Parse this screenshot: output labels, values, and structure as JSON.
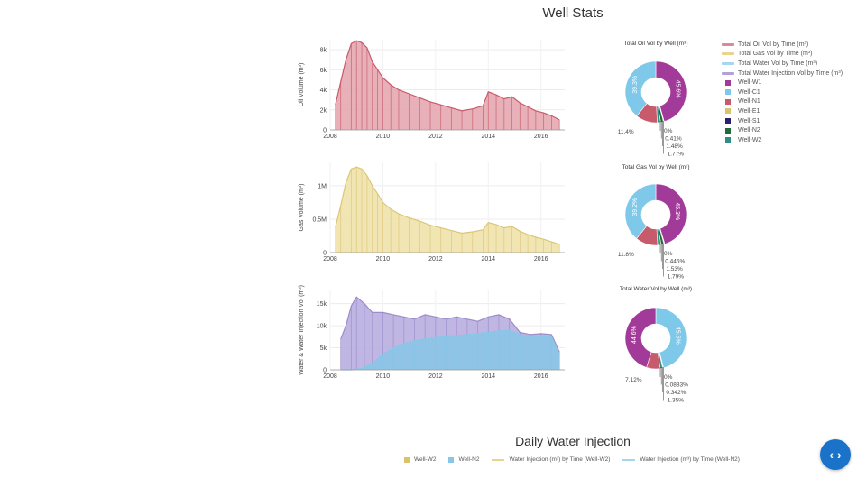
{
  "page": {
    "title": "Well Stats",
    "section_title": "Daily Water Injection"
  },
  "colors": {
    "oil": "#c75a6b",
    "oil_fill": "#e6a7b0",
    "gas": "#dcc676",
    "gas_fill": "#efe3ab",
    "water": "#87c7e8",
    "injection": "#9c8cc9",
    "injection_fill": "#b9aee0",
    "W1": "#a23a9a",
    "C1": "#7ec8ea",
    "N1": "#c75a6b",
    "E1": "#d9c46b",
    "S1": "#2a2266",
    "N2": "#1f6b3a",
    "W2": "#2e8f82"
  },
  "legend": {
    "lines": [
      {
        "label": "Total Oil Vol by Time (m³)",
        "color": "#d88a96"
      },
      {
        "label": "Total Gas Vol by Time (m³)",
        "color": "#e8d48e"
      },
      {
        "label": "Total Water Vol by Time (m³)",
        "color": "#a6d6ef"
      },
      {
        "label": "Total Water Injection Vol by Time (m³)",
        "color": "#b0a2da"
      }
    ],
    "wells": [
      {
        "label": "Well-W1",
        "color": "#a23a9a"
      },
      {
        "label": "Well-C1",
        "color": "#7ec8ea"
      },
      {
        "label": "Well-N1",
        "color": "#c75a6b"
      },
      {
        "label": "Well-E1",
        "color": "#d9c46b"
      },
      {
        "label": "Well-S1",
        "color": "#2a2266"
      },
      {
        "label": "Well-N2",
        "color": "#1f6b3a"
      },
      {
        "label": "Well-W2",
        "color": "#2e8f82"
      }
    ]
  },
  "bottom_legend": {
    "items": [
      {
        "label": "Well-W2",
        "color": "#d9c46b",
        "kind": "box"
      },
      {
        "label": "Well-N2",
        "color": "#87c7e8",
        "kind": "box"
      },
      {
        "label": "Water Injection (m³) by Time (Well-W2)",
        "color": "#e8d48e",
        "kind": "line"
      },
      {
        "label": "Water Injection (m³) by Time (Well-N2)",
        "color": "#a6d6ef",
        "kind": "line"
      }
    ]
  },
  "nav_button": {
    "label": "‹ ›"
  },
  "chart_data": [
    {
      "type": "area",
      "ylabel": "Oil Volume (m³)",
      "xlim": [
        2008,
        2016.9
      ],
      "ylim": [
        0,
        9000
      ],
      "xticks": [
        2008,
        2010,
        2012,
        2014,
        2016
      ],
      "xtick_labels": [
        "2008",
        "2010",
        "2012",
        "2014",
        "2016"
      ],
      "yticks": [
        0,
        2000,
        4000,
        6000,
        8000
      ],
      "ytick_labels": [
        "0",
        "2k",
        "4k",
        "6k",
        "8k"
      ],
      "grid": true,
      "series": [
        {
          "color_key": "oil",
          "x": [
            2008.2,
            2008.4,
            2008.6,
            2008.8,
            2009.0,
            2009.2,
            2009.4,
            2009.6,
            2009.8,
            2010.0,
            2010.3,
            2010.6,
            2011.0,
            2011.4,
            2011.8,
            2012.2,
            2012.6,
            2013.0,
            2013.4,
            2013.8,
            2014.0,
            2014.3,
            2014.6,
            2014.9,
            2015.2,
            2015.5,
            2015.8,
            2016.1,
            2016.4,
            2016.7
          ],
          "values": [
            2500,
            4800,
            7000,
            8600,
            8900,
            8700,
            8200,
            6800,
            6000,
            5200,
            4500,
            4000,
            3600,
            3200,
            2800,
            2500,
            2200,
            1900,
            2100,
            2400,
            3800,
            3500,
            3100,
            3300,
            2700,
            2300,
            1900,
            1700,
            1400,
            1000
          ]
        }
      ]
    },
    {
      "type": "area",
      "ylabel": "Gas Volume (m³)",
      "xlim": [
        2008,
        2016.9
      ],
      "ylim": [
        0,
        1350000
      ],
      "xticks": [
        2008,
        2010,
        2012,
        2014,
        2016
      ],
      "xtick_labels": [
        "2008",
        "2010",
        "2012",
        "2014",
        "2016"
      ],
      "yticks": [
        0,
        500000,
        1000000
      ],
      "ytick_labels": [
        "0",
        "0.5M",
        "1M"
      ],
      "grid": true,
      "series": [
        {
          "color_key": "gas",
          "x": [
            2008.2,
            2008.4,
            2008.6,
            2008.8,
            2009.0,
            2009.2,
            2009.4,
            2009.6,
            2009.8,
            2010.0,
            2010.3,
            2010.6,
            2011.0,
            2011.4,
            2011.8,
            2012.2,
            2012.6,
            2013.0,
            2013.4,
            2013.8,
            2014.0,
            2014.3,
            2014.6,
            2014.9,
            2015.2,
            2015.5,
            2015.8,
            2016.1,
            2016.4,
            2016.7
          ],
          "values": [
            380000,
            700000,
            1050000,
            1250000,
            1280000,
            1250000,
            1150000,
            1000000,
            880000,
            750000,
            650000,
            580000,
            520000,
            470000,
            410000,
            370000,
            330000,
            290000,
            310000,
            340000,
            450000,
            420000,
            370000,
            390000,
            320000,
            270000,
            230000,
            200000,
            160000,
            120000
          ]
        }
      ]
    },
    {
      "type": "area",
      "ylabel": "Water & Water Injection Vol (m³)",
      "xlim": [
        2008,
        2016.9
      ],
      "ylim": [
        0,
        18000
      ],
      "xticks": [
        2008,
        2010,
        2012,
        2014,
        2016
      ],
      "xtick_labels": [
        "2008",
        "2010",
        "2012",
        "2014",
        "2016"
      ],
      "yticks": [
        0,
        5000,
        10000,
        15000
      ],
      "ytick_labels": [
        "0",
        "5k",
        "10k",
        "15k"
      ],
      "grid": true,
      "series": [
        {
          "color_key": "injection",
          "x": [
            2008.4,
            2008.6,
            2008.8,
            2009.0,
            2009.3,
            2009.6,
            2010.0,
            2010.4,
            2010.8,
            2011.2,
            2011.6,
            2012.0,
            2012.4,
            2012.8,
            2013.2,
            2013.6,
            2014.0,
            2014.4,
            2014.8,
            2015.2,
            2015.6,
            2016.0,
            2016.4,
            2016.7
          ],
          "values": [
            7000,
            10000,
            14500,
            16500,
            15000,
            13000,
            13000,
            12500,
            12000,
            11500,
            12500,
            12000,
            11500,
            12000,
            11500,
            11000,
            12000,
            12500,
            11500,
            8500,
            8000,
            8200,
            8000,
            4000
          ]
        },
        {
          "color_key": "water",
          "x": [
            2008.4,
            2008.8,
            2009.2,
            2009.6,
            2010.0,
            2010.4,
            2010.8,
            2011.2,
            2011.6,
            2012.0,
            2012.4,
            2012.8,
            2013.2,
            2013.6,
            2014.0,
            2014.4,
            2014.8,
            2015.2,
            2015.6,
            2016.0,
            2016.4,
            2016.7
          ],
          "values": [
            0,
            0,
            300,
            1500,
            3500,
            5000,
            6000,
            6600,
            7000,
            7300,
            7600,
            7800,
            8000,
            8200,
            8500,
            8800,
            9000,
            8000,
            7600,
            7800,
            7500,
            3500
          ]
        }
      ]
    },
    {
      "type": "pie",
      "title": "Total Oil Vol by Well (m³)",
      "slices": [
        {
          "well": "W1",
          "value": 45.6
        },
        {
          "well": "S1",
          "value": 0.0
        },
        {
          "well": "E1",
          "value": 0.41
        },
        {
          "well": "N2",
          "value": 1.48
        },
        {
          "well": "W2",
          "value": 1.77
        },
        {
          "well": "N1",
          "value": 11.4
        },
        {
          "well": "C1",
          "value": 39.3
        }
      ],
      "labels": {
        "inside_W1": "45.6%",
        "inside_C1": "39.3%",
        "outside_N1": "11.4%",
        "small": [
          "0%",
          "0.41%",
          "1.48%",
          "1.77%"
        ]
      }
    },
    {
      "type": "pie",
      "title": "Total Gas Vol by Well (m³)",
      "slices": [
        {
          "well": "W1",
          "value": 45.3
        },
        {
          "well": "S1",
          "value": 0.0
        },
        {
          "well": "E1",
          "value": 0.445
        },
        {
          "well": "N2",
          "value": 1.53
        },
        {
          "well": "W2",
          "value": 1.79
        },
        {
          "well": "N1",
          "value": 11.8
        },
        {
          "well": "C1",
          "value": 39.2
        }
      ],
      "labels": {
        "inside_W1": "45.3%",
        "inside_C1": "39.2%",
        "outside_N1": "11.8%",
        "small": [
          "0%",
          "0.445%",
          "1.53%",
          "1.79%"
        ]
      }
    },
    {
      "type": "pie",
      "title": "Total Water Vol by Well (m³)",
      "slices": [
        {
          "well": "C1",
          "value": 45.5
        },
        {
          "well": "S1",
          "value": 0.0
        },
        {
          "well": "E1",
          "value": 0.0883
        },
        {
          "well": "N2",
          "value": 0.342
        },
        {
          "well": "W2",
          "value": 1.35
        },
        {
          "well": "N1",
          "value": 7.12
        },
        {
          "well": "W1",
          "value": 44.6
        }
      ],
      "labels": {
        "inside_C1": "45.5%",
        "inside_W1": "44.6%",
        "outside_N1": "7.12%",
        "small": [
          "0%",
          "0.0883%",
          "0.342%",
          "1.35%"
        ]
      }
    }
  ]
}
